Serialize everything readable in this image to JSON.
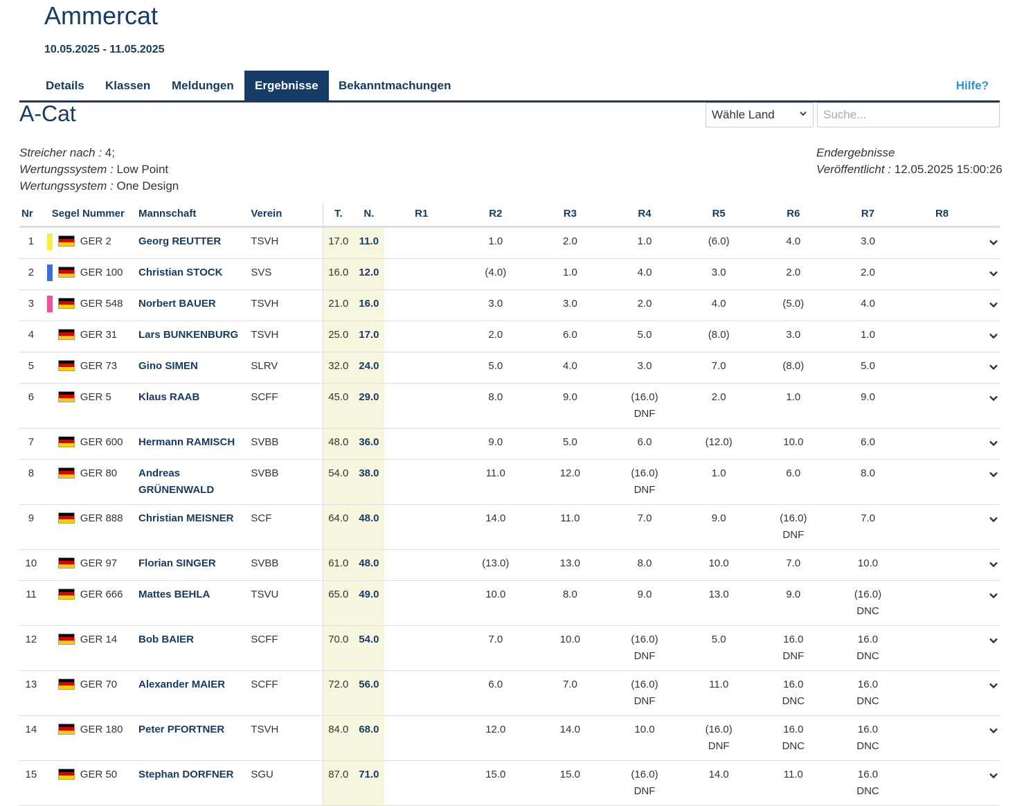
{
  "event": {
    "title": "Ammercat",
    "dates": "10.05.2025 - 11.05.2025"
  },
  "tabs": [
    {
      "label": "Details"
    },
    {
      "label": "Klassen"
    },
    {
      "label": "Meldungen"
    },
    {
      "label": "Ergebnisse",
      "active": true
    },
    {
      "label": "Bekanntmachungen"
    }
  ],
  "help_label": "Hilfe?",
  "class_title": "A-Cat",
  "country_select": {
    "value": "Wähle Land"
  },
  "search": {
    "placeholder": "Suche..."
  },
  "meta": {
    "discards_label": "Streicher nach :",
    "discards_value": "4;",
    "scoring1_label": "Wertungssystem :",
    "scoring1_value": "Low Point",
    "scoring2_label": "Wertungssystem :",
    "scoring2_value": "One Design",
    "status": "Endergebnisse",
    "published_label": "Veröffentlicht :",
    "published_value": "12.05.2025 15:00:26"
  },
  "colors": {
    "primary": "#163b66",
    "help": "#2b8fd9",
    "total_bg": "#f7f7df",
    "gold": "#f5ef4a",
    "silver": "#3a6fd8",
    "bronze": "#f0509a"
  },
  "table": {
    "headers": {
      "nr": "Nr",
      "sail": "Segel Nummer",
      "crew": "Mannschaft",
      "club": "Verein",
      "total": "T.",
      "net": "N.",
      "r1": "R1",
      "r2": "R2",
      "r3": "R3",
      "r4": "R4",
      "r5": "R5",
      "r6": "R6",
      "r7": "R7",
      "r8": "R8"
    },
    "rows": [
      {
        "nr": "1",
        "medal": "gold",
        "flag": "GER",
        "sail": "GER 2",
        "crew": "Georg REUTTER",
        "club": "TSVH",
        "total": "17.0",
        "net": "11.0",
        "r": [
          "",
          "1.0",
          "2.0",
          "1.0",
          "(6.0)",
          "4.0",
          "3.0",
          ""
        ]
      },
      {
        "nr": "2",
        "medal": "silver",
        "flag": "GER",
        "sail": "GER 100",
        "crew": "Christian STOCK",
        "club": "SVS",
        "total": "16.0",
        "net": "12.0",
        "r": [
          "",
          "(4.0)",
          "1.0",
          "4.0",
          "3.0",
          "2.0",
          "2.0",
          ""
        ]
      },
      {
        "nr": "3",
        "medal": "bronze",
        "flag": "GER",
        "sail": "GER 548",
        "crew": "Norbert BAUER",
        "club": "TSVH",
        "total": "21.0",
        "net": "16.0",
        "r": [
          "",
          "3.0",
          "3.0",
          "2.0",
          "4.0",
          "(5.0)",
          "4.0",
          ""
        ]
      },
      {
        "nr": "4",
        "medal": "",
        "flag": "GER",
        "sail": "GER 31",
        "crew": "Lars BUNKENBURG",
        "club": "TSVH",
        "total": "25.0",
        "net": "17.0",
        "r": [
          "",
          "2.0",
          "6.0",
          "5.0",
          "(8.0)",
          "3.0",
          "1.0",
          ""
        ]
      },
      {
        "nr": "5",
        "medal": "",
        "flag": "GER",
        "sail": "GER 73",
        "crew": "Gino SIMEN",
        "club": "SLRV",
        "total": "32.0",
        "net": "24.0",
        "r": [
          "",
          "5.0",
          "4.0",
          "3.0",
          "7.0",
          "(8.0)",
          "5.0",
          ""
        ]
      },
      {
        "nr": "6",
        "medal": "",
        "flag": "GER",
        "sail": "GER 5",
        "crew": "Klaus RAAB",
        "club": "SCFF",
        "total": "45.0",
        "net": "29.0",
        "r": [
          "",
          "8.0",
          "9.0",
          "(16.0)\nDNF",
          "2.0",
          "1.0",
          "9.0",
          ""
        ]
      },
      {
        "nr": "7",
        "medal": "",
        "flag": "GER",
        "sail": "GER 600",
        "crew": "Hermann RAMISCH",
        "club": "SVBB",
        "total": "48.0",
        "net": "36.0",
        "r": [
          "",
          "9.0",
          "5.0",
          "6.0",
          "(12.0)",
          "10.0",
          "6.0",
          ""
        ]
      },
      {
        "nr": "8",
        "medal": "",
        "flag": "GER",
        "sail": "GER 80",
        "crew": "Andreas GRÜNENWALD",
        "club": "SVBB",
        "total": "54.0",
        "net": "38.0",
        "r": [
          "",
          "11.0",
          "12.0",
          "(16.0)\nDNF",
          "1.0",
          "6.0",
          "8.0",
          ""
        ]
      },
      {
        "nr": "9",
        "medal": "",
        "flag": "GER",
        "sail": "GER 888",
        "crew": "Christian MEISNER",
        "club": "SCF",
        "total": "64.0",
        "net": "48.0",
        "r": [
          "",
          "14.0",
          "11.0",
          "7.0",
          "9.0",
          "(16.0)\nDNF",
          "7.0",
          ""
        ]
      },
      {
        "nr": "10",
        "medal": "",
        "flag": "GER",
        "sail": "GER 97",
        "crew": "Florian SINGER",
        "club": "SVBB",
        "total": "61.0",
        "net": "48.0",
        "r": [
          "",
          "(13.0)",
          "13.0",
          "8.0",
          "10.0",
          "7.0",
          "10.0",
          ""
        ]
      },
      {
        "nr": "11",
        "medal": "",
        "flag": "GER",
        "sail": "GER 666",
        "crew": "Mattes BEHLA",
        "club": "TSVU",
        "total": "65.0",
        "net": "49.0",
        "r": [
          "",
          "10.0",
          "8.0",
          "9.0",
          "13.0",
          "9.0",
          "(16.0)\nDNC",
          ""
        ]
      },
      {
        "nr": "12",
        "medal": "",
        "flag": "GER",
        "sail": "GER 14",
        "crew": "Bob BAIER",
        "club": "SCFF",
        "total": "70.0",
        "net": "54.0",
        "r": [
          "",
          "7.0",
          "10.0",
          "(16.0)\nDNF",
          "5.0",
          "16.0\nDNF",
          "16.0\nDNC",
          ""
        ]
      },
      {
        "nr": "13",
        "medal": "",
        "flag": "GER",
        "sail": "GER 70",
        "crew": "Alexander MAIER",
        "club": "SCFF",
        "total": "72.0",
        "net": "56.0",
        "r": [
          "",
          "6.0",
          "7.0",
          "(16.0)\nDNF",
          "11.0",
          "16.0\nDNC",
          "16.0\nDNC",
          ""
        ]
      },
      {
        "nr": "14",
        "medal": "",
        "flag": "GER",
        "sail": "GER 180",
        "crew": "Peter PFORTNER",
        "club": "TSVH",
        "total": "84.0",
        "net": "68.0",
        "r": [
          "",
          "12.0",
          "14.0",
          "10.0",
          "(16.0)\nDNF",
          "16.0\nDNC",
          "16.0\nDNC",
          ""
        ]
      },
      {
        "nr": "15",
        "medal": "",
        "flag": "GER",
        "sail": "GER 50",
        "crew": "Stephan DORFNER",
        "club": "SGU",
        "total": "87.0",
        "net": "71.0",
        "r": [
          "",
          "15.0",
          "15.0",
          "(16.0)\nDNF",
          "14.0",
          "11.0",
          "16.0\nDNC",
          ""
        ]
      }
    ]
  }
}
